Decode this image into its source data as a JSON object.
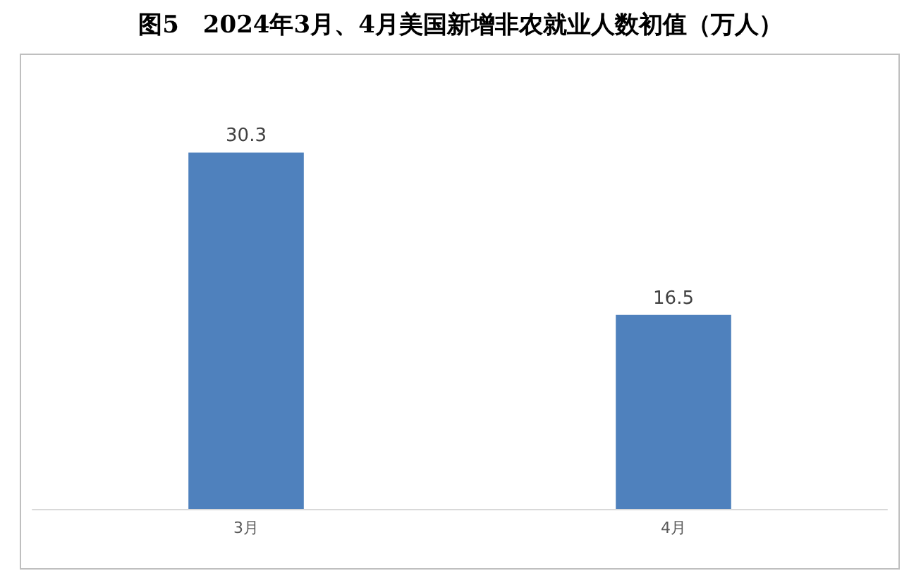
{
  "chart_data": {
    "type": "bar",
    "title": "图5　2024年3月、4月美国新增非农就业人数初值（万人）",
    "categories": [
      "3月",
      "4月"
    ],
    "values": [
      30.3,
      16.5
    ],
    "color": "#4f81bd",
    "data_labels": true
  }
}
